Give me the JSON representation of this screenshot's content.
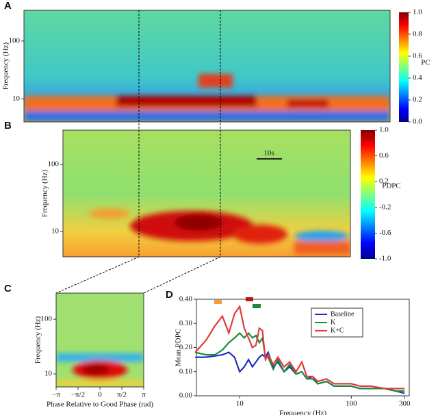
{
  "chart_data": [
    {
      "type": "heatmap",
      "label": "A",
      "ylabel": "Frequency (Hz)",
      "log_y": true,
      "ylim": [
        4,
        340
      ],
      "yticks": [
        10,
        100
      ],
      "colorbar_label": "PC",
      "clim": [
        0,
        1
      ],
      "cticks": [
        {
          "value": 0,
          "label": "0.0"
        },
        {
          "value": 0.2,
          "label": "0.2"
        },
        {
          "value": 0.4,
          "label": "0.4"
        },
        {
          "value": 0.6,
          "label": "0.6"
        },
        {
          "value": 0.8,
          "label": "0.8"
        },
        {
          "value": 1,
          "label": "1.0"
        }
      ]
    },
    {
      "type": "heatmap",
      "label": "B",
      "ylabel": "Frequency (Hz)",
      "log_y": true,
      "ylim": [
        4.2,
        325
      ],
      "yticks": [
        10,
        100
      ],
      "colorbar_label": "PDPC",
      "scale_bar": "10s",
      "clim": [
        -1,
        1
      ],
      "cticks": [
        {
          "value": -1,
          "label": "-1.0"
        },
        {
          "value": -0.6,
          "label": "-0.6"
        },
        {
          "value": -0.2,
          "label": "-0.2"
        },
        {
          "value": 0.2,
          "label": "0.2"
        },
        {
          "value": 0.6,
          "label": "0.6"
        },
        {
          "value": 1,
          "label": "1.0"
        }
      ]
    },
    {
      "type": "heatmap",
      "label": "C",
      "ylabel": "Frequency (Hz)",
      "xlabel": "Phase Relative to Good Phase (rad)",
      "log_y": true,
      "ylim": [
        5.8,
        300
      ],
      "yticks": [
        10,
        100
      ],
      "xlim": [
        -3.1416,
        3.1416
      ],
      "xticks": [
        {
          "value": -3.1416,
          "label": "−π"
        },
        {
          "value": -1.5708,
          "label": "−π/2"
        },
        0,
        {
          "value": 1.5708,
          "label": "π/2"
        },
        {
          "value": 3.1416,
          "label": "π"
        }
      ]
    },
    {
      "type": "line",
      "label": "D",
      "xlabel": "Frequency (Hz)",
      "ylabel": "Mean PDPC",
      "log_x": true,
      "xlim": [
        4.1,
        330
      ],
      "xticks": [
        10,
        100,
        300
      ],
      "ylim": [
        0,
        0.4
      ],
      "yticks": [
        {
          "value": 0,
          "label": "0.00"
        },
        {
          "value": 0.1,
          "label": "0.10"
        },
        {
          "value": 0.2,
          "label": "0.20"
        },
        {
          "value": 0.3,
          "label": "0.30"
        },
        {
          "value": 0.4,
          "label": "0.40"
        }
      ],
      "x": [
        4,
        5,
        6,
        7,
        8,
        9,
        10,
        11,
        12,
        13,
        14,
        15,
        16,
        17,
        18,
        20,
        22,
        25,
        28,
        32,
        36,
        40,
        45,
        50,
        60,
        70,
        80,
        100,
        120,
        150,
        200,
        250,
        300
      ],
      "series": [
        {
          "name": "Baseline",
          "color": "#1f2fbf",
          "values": [
            0.16,
            0.16,
            0.165,
            0.17,
            0.18,
            0.16,
            0.1,
            0.12,
            0.15,
            0.12,
            0.14,
            0.16,
            0.17,
            0.16,
            0.18,
            0.12,
            0.14,
            0.1,
            0.12,
            0.09,
            0.1,
            0.07,
            0.08,
            0.05,
            0.06,
            0.04,
            0.04,
            0.04,
            0.03,
            0.03,
            0.03,
            0.02,
            0.01
          ]
        },
        {
          "name": "K",
          "color": "#1e8a3c",
          "values": [
            0.18,
            0.17,
            0.17,
            0.19,
            0.22,
            0.24,
            0.26,
            0.24,
            0.26,
            0.24,
            0.25,
            0.22,
            0.24,
            0.16,
            0.16,
            0.11,
            0.15,
            0.1,
            0.13,
            0.09,
            0.1,
            0.07,
            0.07,
            0.05,
            0.06,
            0.04,
            0.04,
            0.04,
            0.03,
            0.03,
            0.03,
            0.02,
            0.02
          ]
        },
        {
          "name": "K+C",
          "color": "#e03a3a",
          "values": [
            0.18,
            0.23,
            0.29,
            0.33,
            0.26,
            0.34,
            0.37,
            0.28,
            0.24,
            0.2,
            0.21,
            0.28,
            0.27,
            0.15,
            0.17,
            0.13,
            0.16,
            0.12,
            0.14,
            0.1,
            0.14,
            0.08,
            0.08,
            0.06,
            0.07,
            0.05,
            0.05,
            0.05,
            0.04,
            0.04,
            0.03,
            0.03,
            0.03
          ]
        }
      ]
    }
  ]
}
